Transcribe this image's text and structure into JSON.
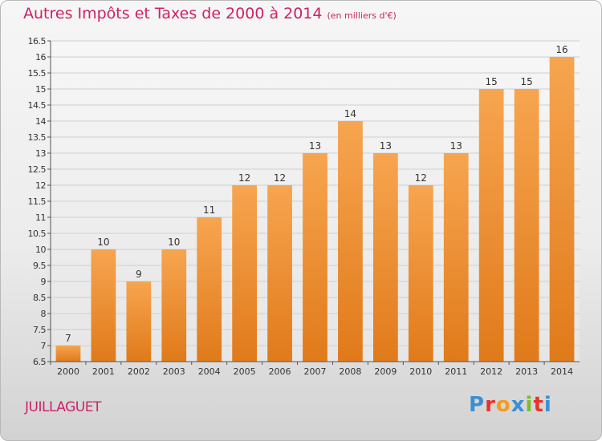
{
  "header": {
    "title": "Autres Impôts et Taxes de 2000 à 2014",
    "unit": "(en milliers d'€)"
  },
  "footer": {
    "location": "JUILLAGUET",
    "logo": {
      "letters": [
        "P",
        "r",
        "o",
        "x",
        "i",
        "t",
        "i"
      ],
      "colors": [
        "#3b8fd0",
        "#e8332a",
        "#f39c1f",
        "#3b8fd0",
        "#7dbb2f",
        "#e8332a",
        "#3b8fd0"
      ]
    }
  },
  "chart_data": {
    "type": "bar",
    "title": "Autres Impôts et Taxes de 2000 à 2014",
    "categories": [
      "2000",
      "2001",
      "2002",
      "2003",
      "2004",
      "2005",
      "2006",
      "2007",
      "2008",
      "2009",
      "2010",
      "2011",
      "2012",
      "2013",
      "2014"
    ],
    "values": [
      7,
      10,
      9,
      10,
      11,
      12,
      12,
      13,
      14,
      13,
      12,
      13,
      15,
      15,
      16
    ],
    "data_labels": [
      "7",
      "10",
      "9",
      "10",
      "11",
      "12",
      "12",
      "13",
      "14",
      "13",
      "12",
      "13",
      "15",
      "15",
      "16"
    ],
    "ylim": [
      6.5,
      16.5
    ],
    "yticks": [
      6.5,
      7,
      7.5,
      8,
      8.5,
      9,
      9.5,
      10,
      10.5,
      11,
      11.5,
      12,
      12.5,
      13,
      13.5,
      14,
      14.5,
      15,
      15.5,
      16,
      16.5
    ],
    "ytick_labels": [
      "6.5",
      "7",
      "7.5",
      "8",
      "8.5",
      "9",
      "9.5",
      "10",
      "10.5",
      "11",
      "11.5",
      "12",
      "12.5",
      "13",
      "13.5",
      "14",
      "14.5",
      "15",
      "15.5",
      "16",
      "16.5"
    ],
    "grid": true,
    "bar_color_top": "#f7a550",
    "bar_color_bottom": "#e07a1a",
    "xlabel": "",
    "ylabel": ""
  }
}
